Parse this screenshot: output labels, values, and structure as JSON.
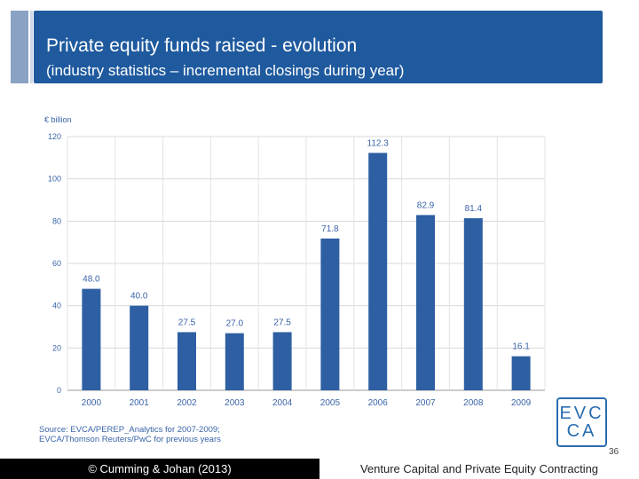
{
  "header": {
    "title": "Private equity funds raised - evolution",
    "subtitle": "(industry statistics – incremental closings during year)"
  },
  "chart_data": {
    "type": "bar",
    "title": "Private equity funds raised - evolution",
    "subtitle": "(industry statistics – incremental closings during year)",
    "ylabel": "€ billion",
    "xlabel": "",
    "ylim": [
      0,
      120
    ],
    "yticks": [
      0,
      20,
      40,
      60,
      80,
      100,
      120
    ],
    "categories": [
      "2000",
      "2001",
      "2002",
      "2003",
      "2004",
      "2005",
      "2006",
      "2007",
      "2008",
      "2009"
    ],
    "values": [
      48.0,
      40.0,
      27.5,
      27.0,
      27.5,
      71.8,
      112.3,
      82.9,
      81.4,
      16.1
    ],
    "value_labels": [
      "48.0",
      "40.0",
      "27.5",
      "27.0",
      "27.5",
      "71.8",
      "112.3",
      "82.9",
      "81.4",
      "16.1"
    ],
    "grid": true,
    "bar_color": "#2e5fa3"
  },
  "source": {
    "line1": "Source: EVCA/PEREP_Analytics for 2007-2009;",
    "line2": "EVCA/Thomson Reuters/PwC for previous years"
  },
  "logo": {
    "top": "EVC",
    "bottom": "CA"
  },
  "page_number": "36",
  "footer": {
    "left": "© Cumming & Johan (2013)",
    "right": "Venture Capital and Private Equity Contracting"
  }
}
